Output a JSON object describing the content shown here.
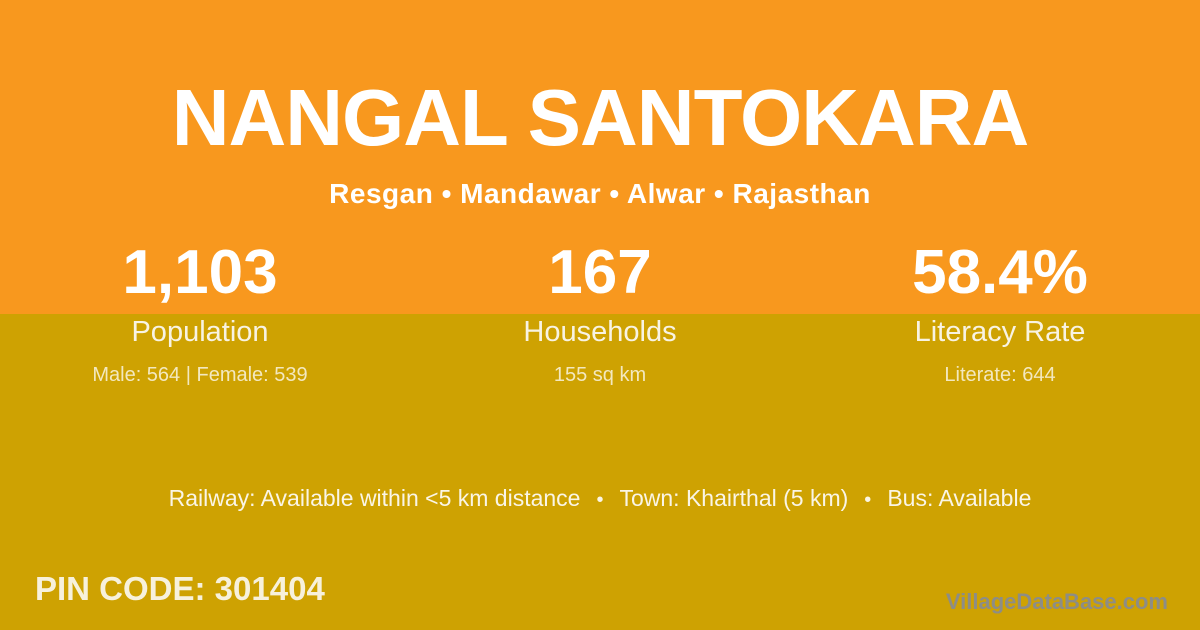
{
  "header": {
    "title": "NANGAL SANTOKARA",
    "subtitle": "Resgan • Mandawar • Alwar • Rajasthan"
  },
  "stats": [
    {
      "value": "1,103",
      "label": "Population",
      "detail": "Male: 564 | Female: 539"
    },
    {
      "value": "167",
      "label": "Households",
      "detail": "155 sq km"
    },
    {
      "value": "58.4%",
      "label": "Literacy Rate",
      "detail": "Literate: 644"
    }
  ],
  "amenities": {
    "items": [
      "Railway: Available within <5 km distance",
      "Town: Khairthal (5 km)",
      "Bus: Available"
    ],
    "separator": "•"
  },
  "footer": {
    "pin_code": "PIN CODE: 301404",
    "watermark": "VillageDataBase.com"
  },
  "colors": {
    "header_orange": "#F8981E",
    "body_gold": "#CEA202",
    "primary_text": "#FFFFFF",
    "cream_text": "#F7F1DC",
    "watermark_gray": "#8D8D86"
  }
}
